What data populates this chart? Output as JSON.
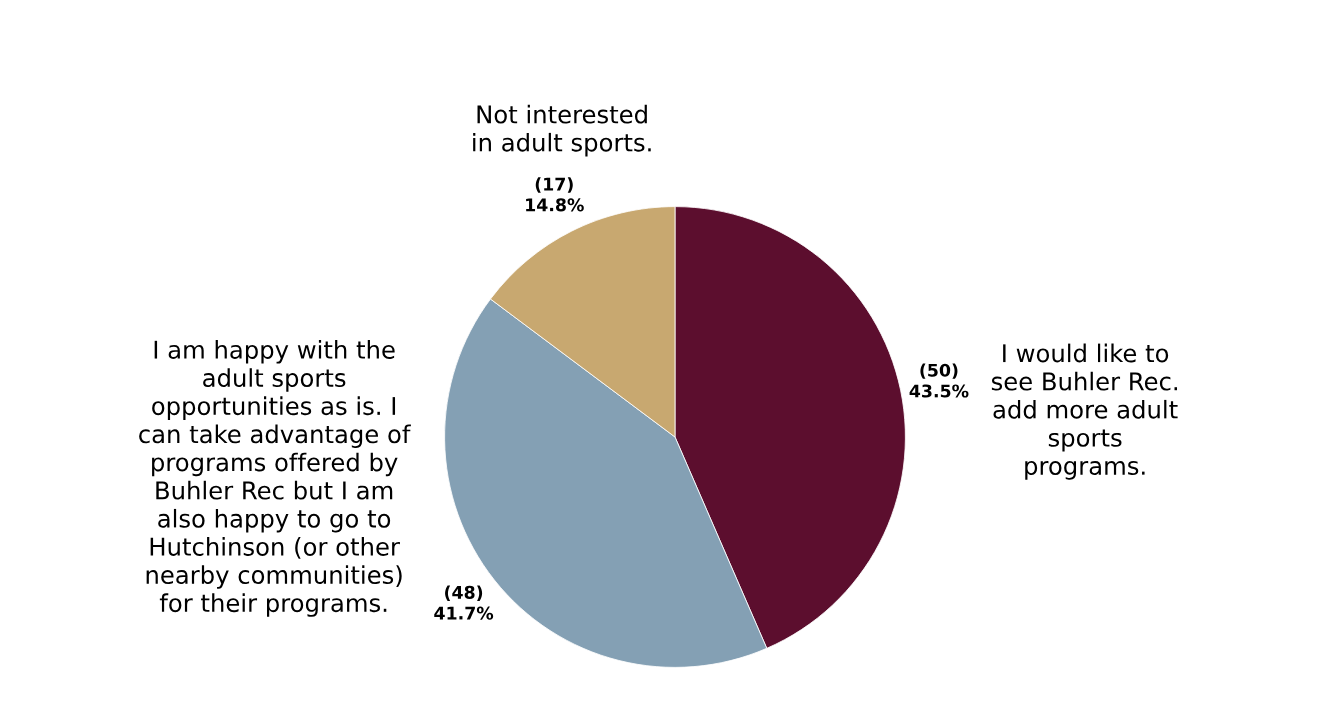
{
  "chart_data": {
    "type": "pie",
    "categories": [
      "I would like to\nsee Buhler Rec.\nadd more adult\nsports\nprograms.",
      "I am happy with the\nadult sports\nopportunities as is. I\ncan take advantage of\nprograms offered by\nBuhler Rec but I am\nalso happy to go to\nHutchinson (or other\nnearby communities)\nfor their programs.",
      "Not interested\nin adult sports."
    ],
    "values": [
      50,
      48,
      17
    ],
    "colors": [
      "#5c0e2e",
      "#84a0b4",
      "#c8a870"
    ],
    "value_labels": [
      "(50)\n43.5%",
      "(48)\n41.7%",
      "(17)\n14.8%"
    ],
    "legend": false
  }
}
